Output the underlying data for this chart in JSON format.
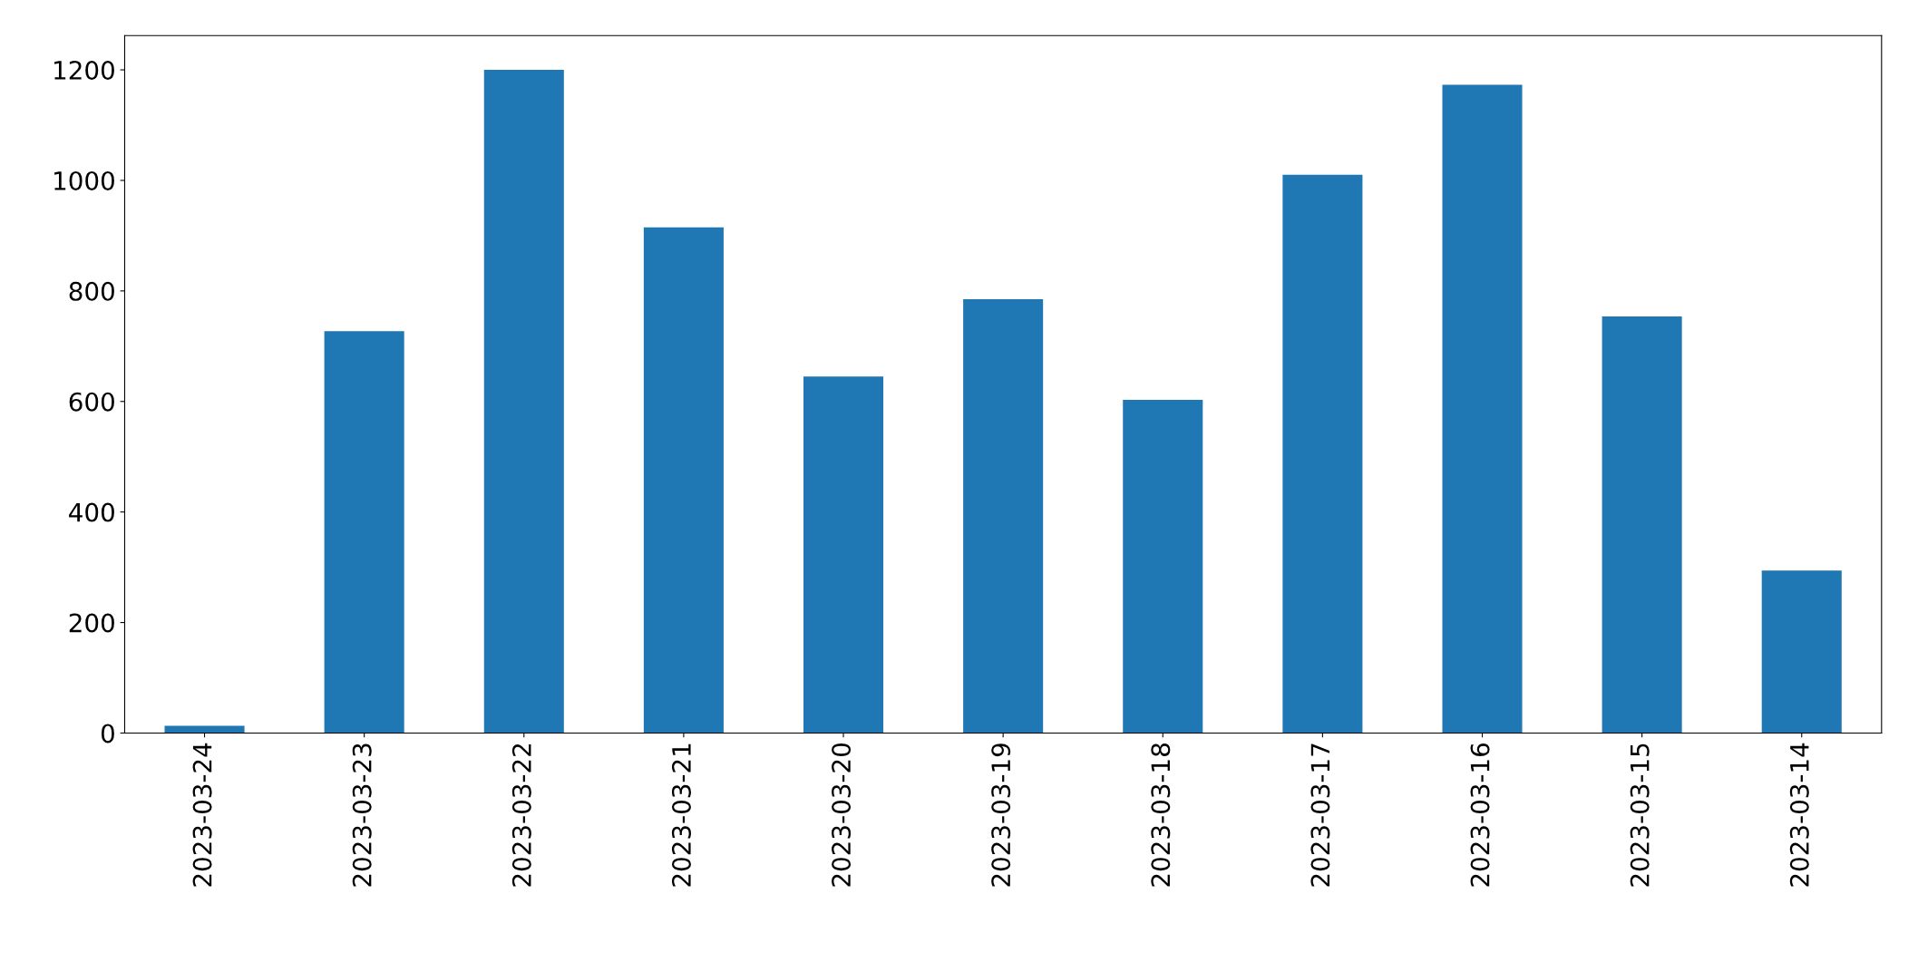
{
  "chart_data": {
    "type": "bar",
    "categories": [
      "2023-03-24",
      "2023-03-23",
      "2023-03-22",
      "2023-03-21",
      "2023-03-20",
      "2023-03-19",
      "2023-03-18",
      "2023-03-17",
      "2023-03-16",
      "2023-03-15",
      "2023-03-14"
    ],
    "values": [
      13,
      727,
      1200,
      915,
      645,
      785,
      603,
      1010,
      1173,
      754,
      294
    ],
    "color": "#1f77b4",
    "ylim": [
      0,
      1262
    ],
    "yticks": [
      0,
      200,
      400,
      600,
      800,
      1000,
      1200
    ],
    "grid": false,
    "legend": false
  }
}
